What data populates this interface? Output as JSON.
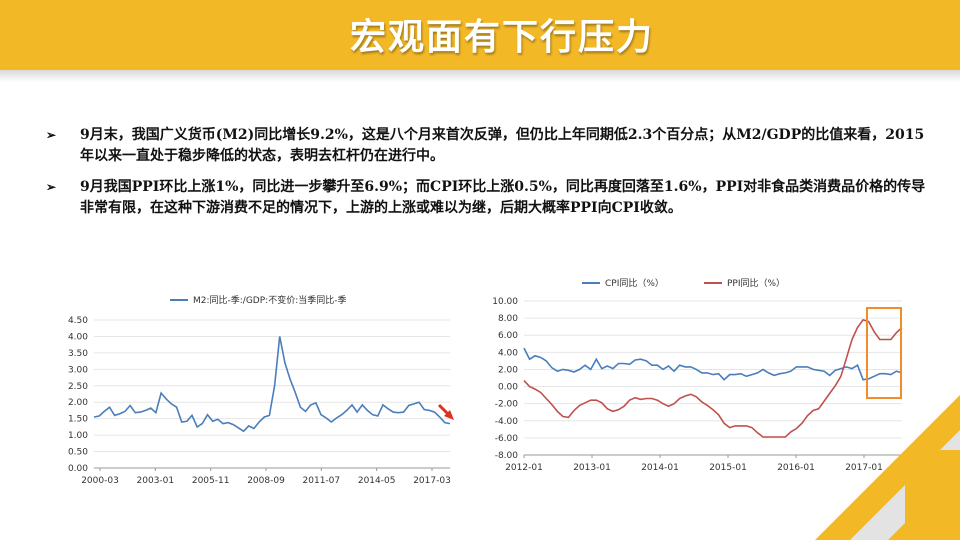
{
  "header": {
    "title": "宏观面有下行压力"
  },
  "bullets": [
    {
      "arrow": "➢",
      "text": "9月末，我国广义货币(M2)同比增长9.2%，这是八个月来首次反弹，但仍比上年同期低2.3个百分点；从M2/GDP的比值来看，2015年以来一直处于稳步降低的状态，表明去杠杆仍在进行中。"
    },
    {
      "arrow": "➢",
      "text": "9月我国PPI环比上涨1%，同比进一步攀升至6.9%；而CPI环比上涨0.5%，同比再度回落至1.6%，PPI对非食品类消费品价格的传导非常有限，在这种下游消费不足的情况下，上游的上涨或难以为继，后期大概率PPI向CPI收敛。"
    }
  ],
  "colors": {
    "accent": "#F3B826",
    "blue_series": "#4A7EBB",
    "red_series": "#C0504D",
    "highlight": "#F28C28"
  },
  "chart_data": [
    {
      "type": "line",
      "title": "",
      "xlabel": "",
      "ylabel": "",
      "legend": "top-center",
      "ylim": [
        0,
        4.5
      ],
      "y_ticks": [
        "4.50",
        "4.00",
        "3.50",
        "3.00",
        "2.50",
        "2.00",
        "1.50",
        "1.00",
        "0.50",
        "0.00"
      ],
      "x_ticks": [
        "2000-03",
        "2003-01",
        "2005-11",
        "2008-09",
        "2011-07",
        "2014-05",
        "2017-03"
      ],
      "series": [
        {
          "name": "M2:同比-季:/GDP:不变价:当季同比-季",
          "x_start": "2000-03",
          "x_step_quarters": 1,
          "values": [
            1.55,
            1.58,
            1.72,
            1.85,
            1.6,
            1.65,
            1.72,
            1.9,
            1.68,
            1.7,
            1.75,
            1.82,
            1.68,
            2.28,
            2.1,
            1.95,
            1.85,
            1.4,
            1.42,
            1.6,
            1.25,
            1.35,
            1.62,
            1.42,
            1.48,
            1.35,
            1.38,
            1.32,
            1.22,
            1.12,
            1.28,
            1.2,
            1.4,
            1.55,
            1.6,
            2.5,
            4.0,
            3.2,
            2.7,
            2.3,
            1.85,
            1.72,
            1.92,
            1.98,
            1.62,
            1.52,
            1.4,
            1.52,
            1.62,
            1.75,
            1.92,
            1.7,
            1.92,
            1.75,
            1.62,
            1.58,
            1.92,
            1.8,
            1.7,
            1.68,
            1.7,
            1.9,
            1.95,
            2.0,
            1.78,
            1.75,
            1.7,
            1.55,
            1.38,
            1.35
          ]
        }
      ],
      "annotation": "downward-red-arrow"
    },
    {
      "type": "line",
      "title": "",
      "xlabel": "",
      "ylabel": "",
      "legend": "top",
      "ylim": [
        -8,
        10
      ],
      "y_ticks": [
        "10.00",
        "8.00",
        "6.00",
        "4.00",
        "2.00",
        "0.00",
        "-2.00",
        "-4.00",
        "-6.00",
        "-8.00"
      ],
      "x_ticks": [
        "2012-01",
        "2013-01",
        "2014-01",
        "2015-01",
        "2016-01",
        "2017-01"
      ],
      "series": [
        {
          "name": "CPI同比（%）",
          "x_start": "2012-01",
          "x_step_months": 1,
          "values": [
            4.5,
            3.2,
            3.6,
            3.4,
            3.0,
            2.2,
            1.8,
            2.0,
            1.9,
            1.7,
            2.0,
            2.5,
            2.0,
            3.2,
            2.1,
            2.4,
            2.1,
            2.7,
            2.7,
            2.6,
            3.1,
            3.2,
            3.0,
            2.5,
            2.5,
            2.0,
            2.4,
            1.8,
            2.5,
            2.3,
            2.3,
            2.0,
            1.6,
            1.6,
            1.4,
            1.5,
            0.8,
            1.4,
            1.4,
            1.5,
            1.2,
            1.4,
            1.6,
            2.0,
            1.6,
            1.3,
            1.5,
            1.6,
            1.8,
            2.3,
            2.3,
            2.3,
            2.0,
            1.9,
            1.8,
            1.3,
            1.9,
            2.1,
            2.3,
            2.1,
            2.5,
            0.8,
            0.9,
            1.2,
            1.5,
            1.5,
            1.4,
            1.8,
            1.6
          ]
        },
        {
          "name": "PPI同比（%）",
          "x_start": "2012-01",
          "x_step_months": 1,
          "values": [
            0.7,
            0.0,
            -0.3,
            -0.7,
            -1.4,
            -2.1,
            -2.9,
            -3.5,
            -3.6,
            -2.8,
            -2.2,
            -1.9,
            -1.6,
            -1.6,
            -1.9,
            -2.6,
            -2.9,
            -2.7,
            -2.3,
            -1.6,
            -1.3,
            -1.5,
            -1.4,
            -1.4,
            -1.6,
            -2.0,
            -2.3,
            -2.0,
            -1.4,
            -1.1,
            -0.9,
            -1.2,
            -1.8,
            -2.2,
            -2.7,
            -3.3,
            -4.3,
            -4.8,
            -4.6,
            -4.6,
            -4.6,
            -4.8,
            -5.4,
            -5.9,
            -5.9,
            -5.9,
            -5.9,
            -5.9,
            -5.3,
            -4.9,
            -4.3,
            -3.4,
            -2.8,
            -2.6,
            -1.7,
            -0.8,
            0.1,
            1.2,
            3.3,
            5.5,
            6.9,
            7.8,
            7.6,
            6.4,
            5.5,
            5.5,
            5.5,
            6.3,
            6.9
          ]
        }
      ],
      "annotation": "orange-highlight-box"
    }
  ]
}
